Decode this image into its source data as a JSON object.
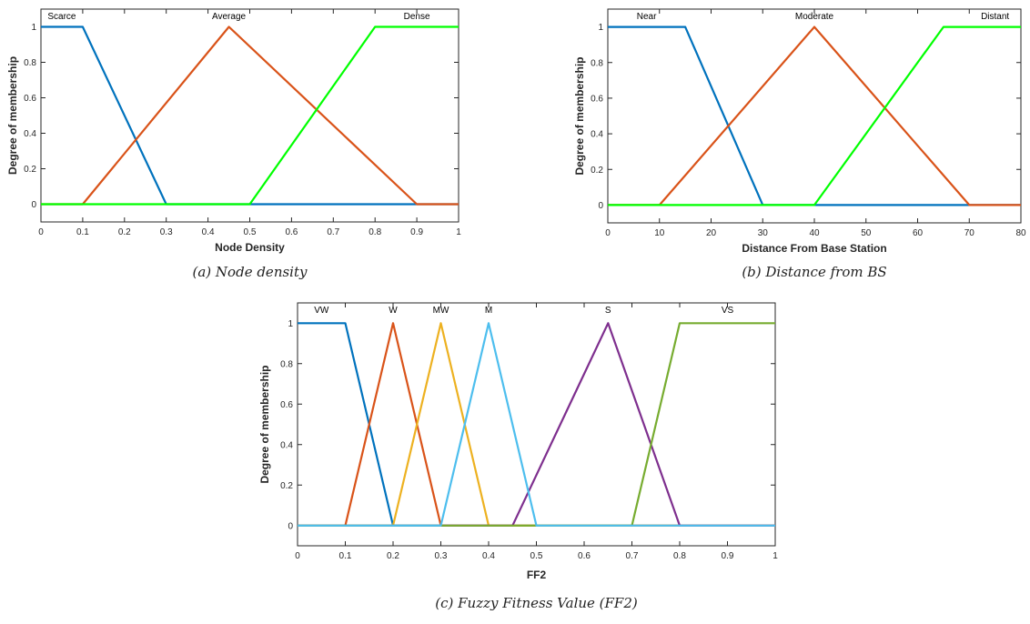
{
  "chart_data": [
    {
      "type": "line",
      "caption": "(a) Node density",
      "xlabel": "Node Density",
      "ylabel": "Degree of membership",
      "xlim": [
        0,
        1
      ],
      "ylim": [
        -0.1,
        1.1
      ],
      "xticks": [
        "0",
        "0.1",
        "0.2",
        "0.3",
        "0.4",
        "0.5",
        "0.6",
        "0.7",
        "0.8",
        "0.9",
        "1"
      ],
      "yticks": [
        "0",
        "0.2",
        "0.4",
        "0.6",
        "0.8",
        "1"
      ],
      "grid": false,
      "series": [
        {
          "name": "Scarce",
          "color": "#0072BD",
          "x": [
            0,
            0.1,
            0.3,
            1
          ],
          "y": [
            1,
            1,
            0,
            0
          ]
        },
        {
          "name": "Average",
          "color": "#D95319",
          "x": [
            0,
            0.1,
            0.45,
            0.9,
            1
          ],
          "y": [
            0,
            0,
            1,
            0,
            0
          ]
        },
        {
          "name": "Dense",
          "color": "#00FF00",
          "x": [
            0,
            0.5,
            0.8,
            1
          ],
          "y": [
            0,
            0,
            1,
            1
          ]
        }
      ],
      "mf_labels": [
        {
          "text": "Scarce",
          "x": 0.05
        },
        {
          "text": "Average",
          "x": 0.45
        },
        {
          "text": "Dense",
          "x": 0.9
        }
      ]
    },
    {
      "type": "line",
      "caption": "(b) Distance from BS",
      "xlabel": "Distance From Base Station",
      "ylabel": "Degree of membership",
      "xlim": [
        0,
        80
      ],
      "ylim": [
        -0.1,
        1.1
      ],
      "xticks": [
        "0",
        "10",
        "20",
        "30",
        "40",
        "50",
        "60",
        "70",
        "80"
      ],
      "yticks": [
        "0",
        "0.2",
        "0.4",
        "0.6",
        "0.8",
        "1"
      ],
      "grid": false,
      "series": [
        {
          "name": "Near",
          "color": "#0072BD",
          "x": [
            0,
            15,
            30,
            80
          ],
          "y": [
            1,
            1,
            0,
            0
          ]
        },
        {
          "name": "Moderate",
          "color": "#D95319",
          "x": [
            0,
            10,
            40,
            70,
            80
          ],
          "y": [
            0,
            0,
            1,
            0,
            0
          ]
        },
        {
          "name": "Distant",
          "color": "#00FF00",
          "x": [
            0,
            40,
            65,
            80
          ],
          "y": [
            0,
            0,
            1,
            1
          ]
        }
      ],
      "mf_labels": [
        {
          "text": "Near",
          "x": 7.5
        },
        {
          "text": "Moderate",
          "x": 40
        },
        {
          "text": "Distant",
          "x": 75
        }
      ]
    },
    {
      "type": "line",
      "caption": "(c) Fuzzy Fitness Value (FF2)",
      "xlabel": "FF2",
      "ylabel": "Degree of membership",
      "xlim": [
        0,
        1
      ],
      "ylim": [
        -0.1,
        1.1
      ],
      "xticks": [
        "0",
        "0.1",
        "0.2",
        "0.3",
        "0.4",
        "0.5",
        "0.6",
        "0.7",
        "0.8",
        "0.9",
        "1"
      ],
      "yticks": [
        "0",
        "0.2",
        "0.4",
        "0.6",
        "0.8",
        "1"
      ],
      "grid": false,
      "series": [
        {
          "name": "VW",
          "color": "#0072BD",
          "x": [
            0,
            0.1,
            0.2,
            1
          ],
          "y": [
            1,
            1,
            0,
            0
          ]
        },
        {
          "name": "W",
          "color": "#D95319",
          "x": [
            0,
            0.1,
            0.2,
            0.3,
            1
          ],
          "y": [
            0,
            0,
            1,
            0,
            0
          ]
        },
        {
          "name": "MW",
          "color": "#EDB120",
          "x": [
            0,
            0.2,
            0.3,
            0.4,
            1
          ],
          "y": [
            0,
            0,
            1,
            0,
            0
          ]
        },
        {
          "name": "S",
          "color": "#7E2F8E",
          "x": [
            0,
            0.45,
            0.65,
            0.8,
            1
          ],
          "y": [
            0,
            0,
            1,
            0,
            0
          ]
        },
        {
          "name": "VS",
          "color": "#77AC30",
          "x": [
            0,
            0.7,
            0.8,
            1
          ],
          "y": [
            0,
            0,
            1,
            1
          ]
        },
        {
          "name": "M",
          "color": "#4DBEEE",
          "x": [
            0,
            0.3,
            0.4,
            0.5,
            1
          ],
          "y": [
            0,
            0,
            1,
            0,
            0
          ]
        }
      ],
      "mf_labels": [
        {
          "text": "VW",
          "x": 0.05
        },
        {
          "text": "W",
          "x": 0.2
        },
        {
          "text": "MW",
          "x": 0.3
        },
        {
          "text": "M",
          "x": 0.4
        },
        {
          "text": "S",
          "x": 0.65
        },
        {
          "text": "VS",
          "x": 0.9
        }
      ]
    }
  ]
}
